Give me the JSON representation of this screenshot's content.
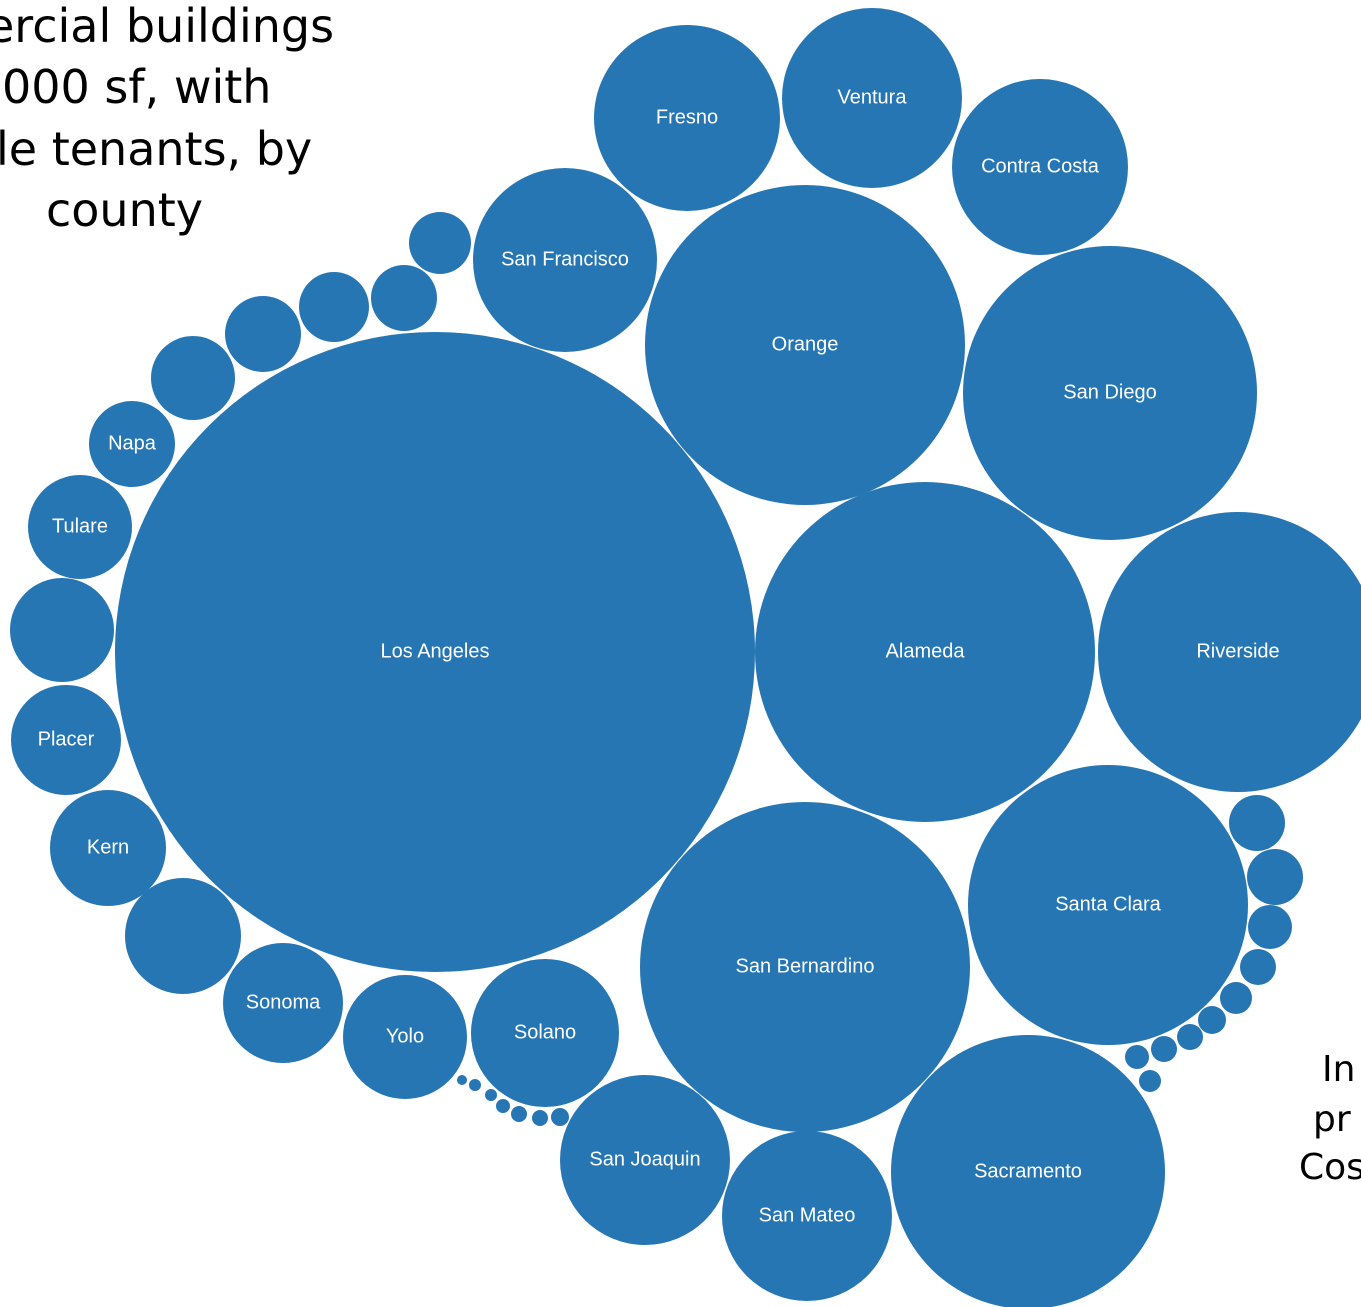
{
  "heading": {
    "lines": [
      "ercial buildings",
      "000 sf, with",
      "le tenants, by",
      "county"
    ]
  },
  "side_note": {
    "lines": [
      "In",
      "pr",
      "Cos"
    ]
  },
  "chart_data": {
    "type": "packed-bubble",
    "color": "#2776b4",
    "label_color": "#ffffff",
    "bubbles": [
      {
        "label": "Los Angeles"
      },
      {
        "label": "Alameda"
      },
      {
        "label": "Orange"
      },
      {
        "label": "San Bernardino"
      },
      {
        "label": "San Diego"
      },
      {
        "label": "Riverside"
      },
      {
        "label": "Santa Clara"
      },
      {
        "label": "Sacramento"
      },
      {
        "label": "San Francisco"
      },
      {
        "label": "Contra Costa"
      },
      {
        "label": "Ventura"
      },
      {
        "label": "Fresno"
      },
      {
        "label": "San Mateo"
      },
      {
        "label": "San Joaquin"
      },
      {
        "label": "Solano"
      },
      {
        "label": "Yolo"
      },
      {
        "label": "Sonoma"
      },
      {
        "label": "Kern"
      },
      {
        "label": "Placer"
      },
      {
        "label": "Tulare"
      },
      {
        "label": "Napa"
      },
      {
        "label": ""
      },
      {
        "label": ""
      },
      {
        "label": ""
      },
      {
        "label": ""
      },
      {
        "label": ""
      },
      {
        "label": ""
      },
      {
        "label": ""
      },
      {
        "label": ""
      },
      {
        "label": ""
      },
      {
        "label": ""
      },
      {
        "label": ""
      },
      {
        "label": ""
      },
      {
        "label": ""
      },
      {
        "label": ""
      },
      {
        "label": ""
      },
      {
        "label": ""
      },
      {
        "label": ""
      },
      {
        "label": ""
      },
      {
        "label": ""
      },
      {
        "label": ""
      },
      {
        "label": ""
      },
      {
        "label": ""
      },
      {
        "label": ""
      },
      {
        "label": ""
      }
    ]
  }
}
